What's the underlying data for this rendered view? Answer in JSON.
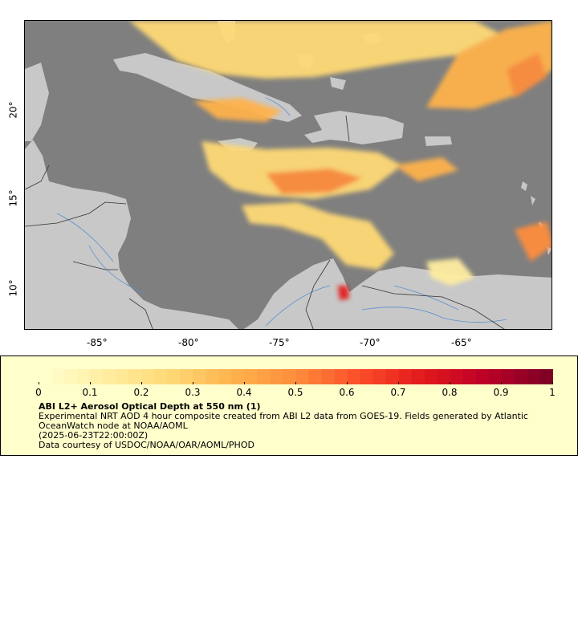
{
  "map": {
    "colors": {
      "ocean": "#7f7f7f",
      "land": "#c8c8c8",
      "rivers": "#5b8fcf",
      "borders": "#333333"
    },
    "lon_ticks": [
      "-85°",
      "-80°",
      "-75°",
      "-70°",
      "-65°"
    ],
    "lat_ticks": [
      "20°",
      "15°",
      "10°"
    ],
    "extent": {
      "lon_min": -89,
      "lon_max": -60,
      "lat_min": 8,
      "lat_max": 25
    }
  },
  "colorbar": {
    "labels": [
      "0",
      "0.1",
      "0.2",
      "0.3",
      "0.4",
      "0.5",
      "0.6",
      "0.7",
      "0.8",
      "0.9",
      "1"
    ],
    "range": [
      0,
      1
    ],
    "palette": [
      "#ffffcc",
      "#ffeda0",
      "#fed976",
      "#feb24c",
      "#fd8d3c",
      "#fc4e2a",
      "#e31a1c",
      "#bd0026",
      "#800026"
    ]
  },
  "legend": {
    "title": "ABI L2+ Aerosol Optical Depth at 550 nm (1)",
    "line1": "Experimental NRT AOD 4 hour composite created from ABI L2 data from GOES-19. Fields generated by Atlantic OceanWatch node at NOAA/AOML",
    "line2": "(2025-06-23T22:00:00Z)",
    "line3": "Data courtesy of USDOC/NOAA/OAR/AOML/PHOD"
  }
}
